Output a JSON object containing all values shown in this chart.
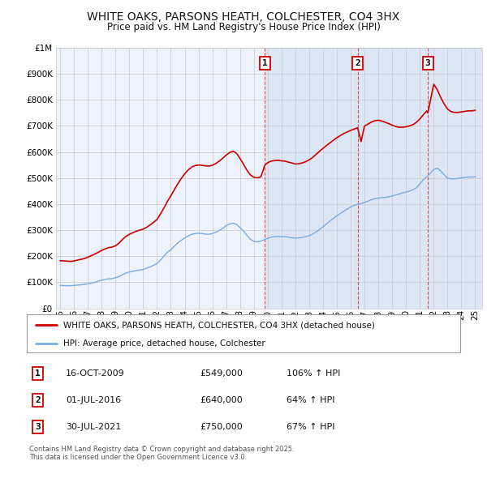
{
  "title": "WHITE OAKS, PARSONS HEATH, COLCHESTER, CO4 3HX",
  "subtitle": "Price paid vs. HM Land Registry's House Price Index (HPI)",
  "legend_line1": "WHITE OAKS, PARSONS HEATH, COLCHESTER, CO4 3HX (detached house)",
  "legend_line2": "HPI: Average price, detached house, Colchester",
  "footnote": "Contains HM Land Registry data © Crown copyright and database right 2025.\nThis data is licensed under the Open Government Licence v3.0.",
  "sales": [
    {
      "num": 1,
      "date": "16-OCT-2009",
      "price": 549000,
      "price_str": "£549,000",
      "pct": "106%",
      "dir": "↑"
    },
    {
      "num": 2,
      "date": "01-JUL-2016",
      "price": 640000,
      "price_str": "£640,000",
      "pct": "64%",
      "dir": "↑"
    },
    {
      "num": 3,
      "date": "30-JUL-2021",
      "price": 750000,
      "price_str": "£750,000",
      "pct": "67%",
      "dir": "↑"
    }
  ],
  "sale_years": [
    2009.79,
    2016.5,
    2021.58
  ],
  "ylim": [
    0,
    1000000
  ],
  "xlim_start": 1994.7,
  "xlim_end": 2025.5,
  "red_color": "#cc0000",
  "blue_color": "#7aace0",
  "background_color": "#ffffff",
  "plot_bg_color": "#eef2fb",
  "plot_bg_color_right": "#dce6f5",
  "grid_color": "#c8c8c8",
  "vline_color": "#dd3333",
  "sale_marker_bg": "#ffffff",
  "sale_marker_border": "#cc0000",
  "hpi_data_years": [
    1995.0,
    1995.25,
    1995.5,
    1995.75,
    1996.0,
    1996.25,
    1996.5,
    1996.75,
    1997.0,
    1997.25,
    1997.5,
    1997.75,
    1998.0,
    1998.25,
    1998.5,
    1998.75,
    1999.0,
    1999.25,
    1999.5,
    1999.75,
    2000.0,
    2000.25,
    2000.5,
    2000.75,
    2001.0,
    2001.25,
    2001.5,
    2001.75,
    2002.0,
    2002.25,
    2002.5,
    2002.75,
    2003.0,
    2003.25,
    2003.5,
    2003.75,
    2004.0,
    2004.25,
    2004.5,
    2004.75,
    2005.0,
    2005.25,
    2005.5,
    2005.75,
    2006.0,
    2006.25,
    2006.5,
    2006.75,
    2007.0,
    2007.25,
    2007.5,
    2007.75,
    2008.0,
    2008.25,
    2008.5,
    2008.75,
    2009.0,
    2009.25,
    2009.5,
    2009.75,
    2010.0,
    2010.25,
    2010.5,
    2010.75,
    2011.0,
    2011.25,
    2011.5,
    2011.75,
    2012.0,
    2012.25,
    2012.5,
    2012.75,
    2013.0,
    2013.25,
    2013.5,
    2013.75,
    2014.0,
    2014.25,
    2014.5,
    2014.75,
    2015.0,
    2015.25,
    2015.5,
    2015.75,
    2016.0,
    2016.25,
    2016.5,
    2016.75,
    2017.0,
    2017.25,
    2017.5,
    2017.75,
    2018.0,
    2018.25,
    2018.5,
    2018.75,
    2019.0,
    2019.25,
    2019.5,
    2019.75,
    2020.0,
    2020.25,
    2020.5,
    2020.75,
    2021.0,
    2021.25,
    2021.5,
    2021.75,
    2022.0,
    2022.25,
    2022.5,
    2022.75,
    2023.0,
    2023.25,
    2023.5,
    2023.75,
    2024.0,
    2024.25,
    2024.5,
    2024.75,
    2025.0
  ],
  "hpi_data_values": [
    88000,
    87000,
    86500,
    87000,
    88000,
    89000,
    90500,
    92000,
    94000,
    97000,
    100000,
    104000,
    108000,
    111000,
    113000,
    114000,
    117000,
    122000,
    129000,
    135000,
    139000,
    142000,
    145000,
    147000,
    149000,
    154000,
    159000,
    165000,
    172000,
    185000,
    200000,
    215000,
    225000,
    238000,
    251000,
    261000,
    270000,
    278000,
    284000,
    287000,
    288000,
    287000,
    285000,
    284000,
    287000,
    292000,
    299000,
    307000,
    317000,
    324000,
    327000,
    322000,
    310000,
    297000,
    280000,
    265000,
    257000,
    255000,
    258000,
    263000,
    269000,
    273000,
    275000,
    276000,
    275000,
    275000,
    273000,
    271000,
    269000,
    270000,
    272000,
    275000,
    279000,
    285000,
    293000,
    303000,
    313000,
    324000,
    335000,
    345000,
    355000,
    364000,
    373000,
    381000,
    389000,
    395000,
    399000,
    402000,
    406000,
    411000,
    417000,
    421000,
    423000,
    425000,
    426000,
    428000,
    431000,
    435000,
    439000,
    443000,
    446000,
    450000,
    455000,
    463000,
    478000,
    493000,
    505000,
    518000,
    533000,
    538000,
    528000,
    513000,
    500000,
    497000,
    497000,
    499000,
    501000,
    503000,
    504000,
    504000,
    505000
  ],
  "prop_data_years": [
    1995.0,
    1995.25,
    1995.5,
    1995.75,
    1996.0,
    1996.25,
    1996.5,
    1996.75,
    1997.0,
    1997.25,
    1997.5,
    1997.75,
    1998.0,
    1998.25,
    1998.5,
    1998.75,
    1999.0,
    1999.25,
    1999.5,
    1999.75,
    2000.0,
    2000.25,
    2000.5,
    2000.75,
    2001.0,
    2001.25,
    2001.5,
    2001.75,
    2002.0,
    2002.25,
    2002.5,
    2002.75,
    2003.0,
    2003.25,
    2003.5,
    2003.75,
    2004.0,
    2004.25,
    2004.5,
    2004.75,
    2005.0,
    2005.25,
    2005.5,
    2005.75,
    2006.0,
    2006.25,
    2006.5,
    2006.75,
    2007.0,
    2007.25,
    2007.5,
    2007.75,
    2008.0,
    2008.25,
    2008.5,
    2008.75,
    2009.0,
    2009.25,
    2009.5,
    2009.79,
    2010.0,
    2010.25,
    2010.5,
    2010.75,
    2011.0,
    2011.25,
    2011.5,
    2011.75,
    2012.0,
    2012.25,
    2012.5,
    2012.75,
    2013.0,
    2013.25,
    2013.5,
    2013.75,
    2014.0,
    2014.25,
    2014.5,
    2014.75,
    2015.0,
    2015.25,
    2015.5,
    2015.75,
    2016.0,
    2016.25,
    2016.5,
    2016.75,
    2017.0,
    2017.25,
    2017.5,
    2017.75,
    2018.0,
    2018.25,
    2018.5,
    2018.75,
    2019.0,
    2019.25,
    2019.5,
    2019.75,
    2020.0,
    2020.25,
    2020.5,
    2020.75,
    2021.0,
    2021.25,
    2021.5,
    2021.58,
    2022.0,
    2022.25,
    2022.5,
    2022.75,
    2023.0,
    2023.25,
    2023.5,
    2023.75,
    2024.0,
    2024.25,
    2024.5,
    2024.75,
    2025.0
  ],
  "prop_data_values": [
    183000,
    182000,
    181000,
    180000,
    182000,
    185000,
    188000,
    191000,
    196000,
    202000,
    208000,
    215000,
    222000,
    228000,
    233000,
    235000,
    240000,
    250000,
    264000,
    276000,
    284000,
    290000,
    296000,
    300000,
    304000,
    311000,
    320000,
    330000,
    341000,
    362000,
    385000,
    410000,
    432000,
    455000,
    478000,
    498000,
    516000,
    531000,
    542000,
    548000,
    550000,
    549000,
    547000,
    546000,
    549000,
    556000,
    565000,
    576000,
    588000,
    598000,
    603000,
    595000,
    575000,
    553000,
    530000,
    512000,
    503000,
    501000,
    504000,
    549000,
    559000,
    565000,
    567000,
    568000,
    566000,
    565000,
    561000,
    558000,
    554000,
    555000,
    558000,
    563000,
    570000,
    579000,
    591000,
    603000,
    614000,
    625000,
    635000,
    645000,
    655000,
    663000,
    671000,
    677000,
    683000,
    688000,
    693000,
    640000,
    700000,
    707000,
    715000,
    720000,
    722000,
    719000,
    714000,
    709000,
    703000,
    698000,
    695000,
    695000,
    697000,
    700000,
    705000,
    714000,
    727000,
    743000,
    758000,
    750000,
    860000,
    840000,
    810000,
    785000,
    765000,
    755000,
    752000,
    752000,
    754000,
    756000,
    758000,
    758000,
    760000
  ]
}
